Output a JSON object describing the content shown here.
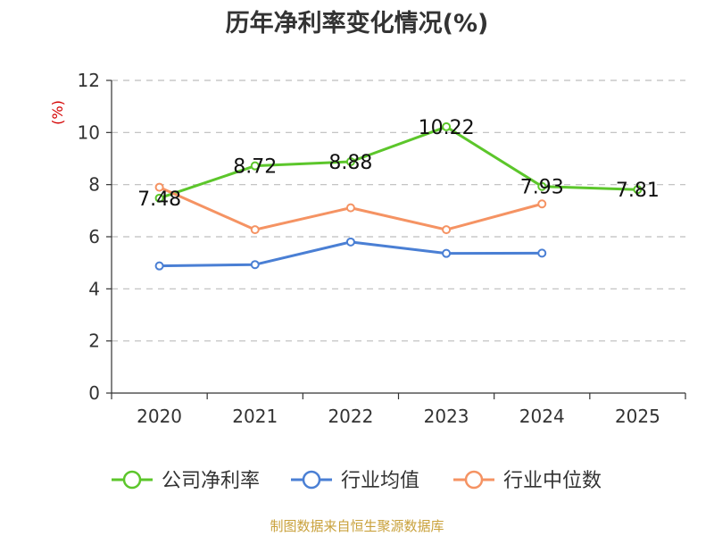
{
  "chart_data": {
    "type": "line",
    "title": "历年净利率变化情况(%)",
    "ylabel": "(%)",
    "ylim": [
      0,
      12
    ],
    "yticks": [
      0,
      2,
      4,
      6,
      8,
      10,
      12
    ],
    "categories": [
      "2020",
      "2021",
      "2022",
      "2023",
      "2024",
      "2025"
    ],
    "grid": true,
    "legend_position": "bottom",
    "series": [
      {
        "name": "公司净利率",
        "color": "#5cc62b",
        "values": [
          7.48,
          8.72,
          8.88,
          10.22,
          7.93,
          7.81
        ],
        "labels": [
          "7.48",
          "8.72",
          "8.88",
          "10.22",
          "7.93",
          "7.81"
        ]
      },
      {
        "name": "行业均值",
        "color": "#4a7fd4",
        "values": [
          4.88,
          4.93,
          5.8,
          5.36,
          5.37,
          null
        ]
      },
      {
        "name": "行业中位数",
        "color": "#f59363",
        "values": [
          7.9,
          6.27,
          7.11,
          6.27,
          7.26,
          null
        ]
      }
    ],
    "unit_color": "#d40000"
  },
  "footer": {
    "source": "制图数据来自恒生聚源数据库"
  }
}
